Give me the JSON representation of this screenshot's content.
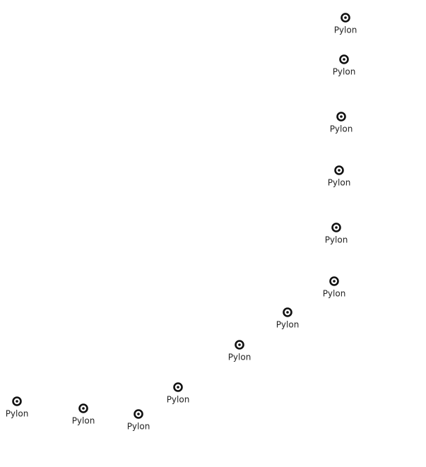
{
  "markers": [
    {
      "label": "Pylon"
    },
    {
      "label": "Pylon"
    },
    {
      "label": "Pylon"
    },
    {
      "label": "Pylon"
    },
    {
      "label": "Pylon"
    },
    {
      "label": "Pylon"
    },
    {
      "label": "Pylon"
    },
    {
      "label": "Pylon"
    },
    {
      "label": "Pylon"
    },
    {
      "label": "Pylon"
    },
    {
      "label": "Pylon"
    },
    {
      "label": "Pylon"
    }
  ]
}
